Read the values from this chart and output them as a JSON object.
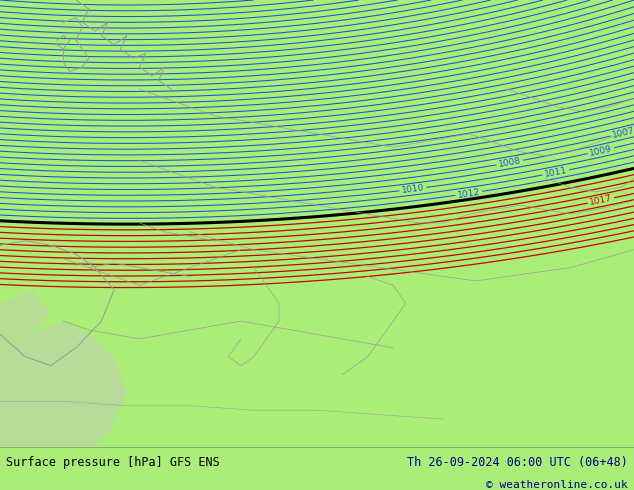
{
  "title_left": "Surface pressure [hPa] GFS ENS",
  "title_right": "Th 26-09-2024 06:00 UTC (06+48)",
  "copyright": "© weatheronline.co.uk",
  "bg_color": "#aaee77",
  "ocean_color": "#c8d8b8",
  "border_color": "#999999",
  "blue_color": "#1155dd",
  "black_color": "#000000",
  "red_color": "#cc0000",
  "bar_color": "#cccccc",
  "title_dark": "#000088",
  "figsize": [
    6.34,
    4.9
  ],
  "dpi": 100
}
